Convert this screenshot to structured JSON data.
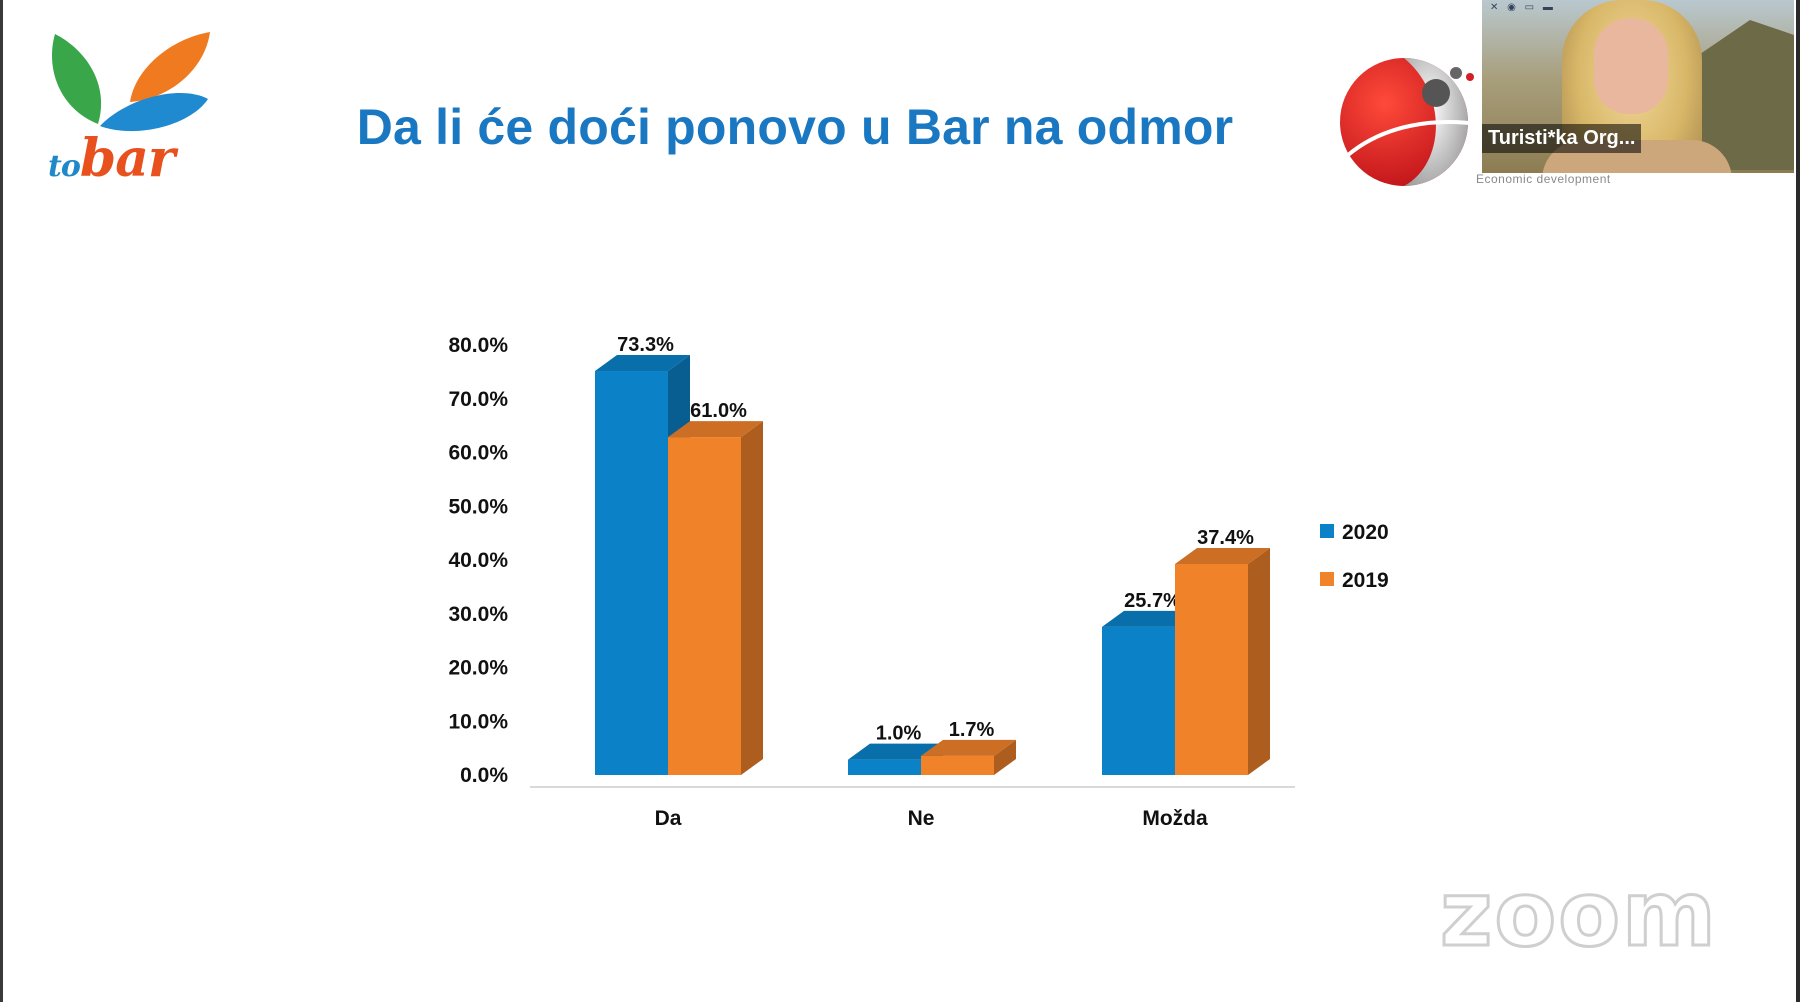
{
  "slide": {
    "title": "Da li će doći ponovo u Bar na odmor",
    "logo_text_pre": "to",
    "logo_text_main": "bar",
    "brand_caption": "Economic development",
    "watermark": "zoom"
  },
  "video": {
    "participant_name": "Turisti*ka Org..."
  },
  "chart_data": {
    "type": "bar",
    "categories": [
      "Da",
      "Ne",
      "Možda"
    ],
    "series": [
      {
        "name": "2020",
        "values": [
          73.3,
          1.0,
          25.7
        ],
        "labels": [
          "73.3%",
          "1.0%",
          "25.7%"
        ],
        "color": "#0b82c8"
      },
      {
        "name": "2019",
        "values": [
          61.0,
          1.7,
          37.4
        ],
        "labels": [
          "61.0%",
          "1.7%",
          "37.4%"
        ],
        "color": "#f0822a"
      }
    ],
    "ylim": [
      0,
      80
    ],
    "yticks": [
      "0.0%",
      "10.0%",
      "20.0%",
      "30.0%",
      "40.0%",
      "50.0%",
      "60.0%",
      "70.0%",
      "80.0%"
    ],
    "legend_position": "right",
    "grid": false
  }
}
